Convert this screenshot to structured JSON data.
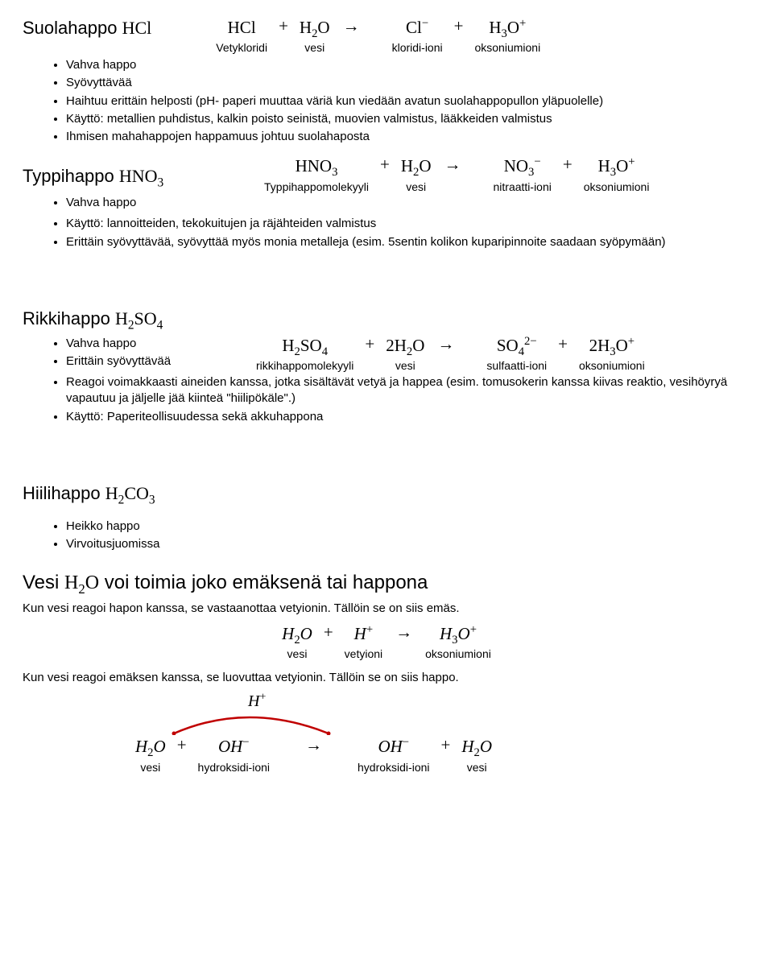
{
  "s1": {
    "title_html": "Suolahappo <span class='chem'>HCl</span>",
    "eq": {
      "terms": [
        {
          "f": "HCl",
          "l": "Vetykloridi"
        },
        {
          "f": "H<sub>2</sub>O",
          "l": "vesi"
        },
        {
          "f": "Cl<sup>−</sup>",
          "l": "kloridi-ioni"
        },
        {
          "f": "H<sub>3</sub>O<sup>+</sup>",
          "l": "oksoniumioni"
        }
      ],
      "ops": [
        "+",
        "→",
        "+"
      ]
    },
    "bullets": [
      "Vahva happo",
      "Syövyttävää",
      "Haihtuu erittäin helposti (pH- paperi muuttaa väriä kun viedään avatun suolahappopullon yläpuolelle)",
      "Käyttö: metallien puhdistus, kalkin poisto seinistä, muovien valmistus, lääkkeiden valmistus",
      "Ihmisen mahahappojen happamuus johtuu suolahaposta"
    ]
  },
  "s2": {
    "title_html": "Typpihappo <span class='chem'>HNO<sub>3</sub></span>",
    "eq": {
      "terms": [
        {
          "f": "HNO<sub>3</sub>",
          "l": "Typpihappomolekyyli"
        },
        {
          "f": "H<sub>2</sub>O",
          "l": "vesi"
        },
        {
          "f": "NO<sub>3</sub><sup>−</sup>",
          "l": "nitraatti-ioni"
        },
        {
          "f": "H<sub>3</sub>O<sup>+</sup>",
          "l": "oksoniumioni"
        }
      ],
      "ops": [
        "+",
        "→",
        "+"
      ]
    },
    "bullets_left": [
      "Vahva happo"
    ],
    "bullets_after": [
      "Käyttö: lannoitteiden, tekokuitujen ja räjähteiden valmistus",
      "Erittäin syövyttävää, syövyttää myös monia metalleja (esim. 5sentin kolikon kuparipinnoite saadaan syöpymään)"
    ]
  },
  "s3": {
    "title_html": "Rikkihappo <span class='chem'>H<sub>2</sub>SO<sub>4</sub></span>",
    "eq": {
      "terms": [
        {
          "f": "H<sub>2</sub>SO<sub>4</sub>",
          "l": "rikkihappomolekyyli"
        },
        {
          "f": "2H<sub>2</sub>O",
          "l": "vesi"
        },
        {
          "f": "SO<sub>4</sub><sup>2−</sup>",
          "l": "sulfaatti-ioni"
        },
        {
          "f": "2H<sub>3</sub>O<sup>+</sup>",
          "l": "oksoniumioni"
        }
      ],
      "ops": [
        "+",
        "→",
        "+"
      ]
    },
    "bullets_left": [
      "Vahva happo",
      "Erittäin syövyttävää"
    ],
    "bullets_after": [
      "Reagoi voimakkaasti aineiden kanssa, jotka sisältävät vetyä ja happea (esim. tomusokerin kanssa kiivas reaktio, vesihöyryä vapautuu ja jäljelle jää kiinteä \"hiilipökäle\".)",
      "Käyttö: Paperiteollisuudessa sekä akkuhappona"
    ]
  },
  "s4": {
    "title_html": "Hiilihappo <span class='chem'>H<sub>2</sub>CO<sub>3</sub></span>",
    "bullets": [
      "Heikko happo",
      "Virvoitusjuomissa"
    ]
  },
  "s5": {
    "title_html": "Vesi <span class='chem'>H<sub>2</sub>O</span> voi toimia joko emäksenä tai happona",
    "p1": "Kun vesi reagoi hapon kanssa, se vastaanottaa vetyionin. Tällöin se on siis emäs.",
    "eq1": {
      "terms": [
        {
          "f": "<span class='italic'>H</span><sub>2</sub><span class='italic'>O</span>",
          "l": "vesi"
        },
        {
          "f": "<span class='italic'>H</span><sup>+</sup>",
          "l": "vetyioni"
        },
        {
          "f": "<span class='italic'>H</span><sub>3</sub><span class='italic'>O</span><sup>+</sup>",
          "l": "oksoniumioni"
        }
      ],
      "ops": [
        "+",
        "→"
      ]
    },
    "p2": "Kun vesi reagoi emäksen kanssa, se luovuttaa vetyionin. Tällöin se on siis happo.",
    "hplus": "<span class='italic'>H</span><sup>+</sup>",
    "eq2": {
      "terms": [
        {
          "f": "<span class='italic'>H</span><sub>2</sub><span class='italic'>O</span>",
          "l": "vesi"
        },
        {
          "f": "<span class='italic'>OH</span><sup>−</sup>",
          "l": "hydroksidi-ioni"
        },
        {
          "f": "<span class='italic'>OH</span><sup>−</sup>",
          "l": "hydroksidi-ioni"
        },
        {
          "f": "<span class='italic'>H</span><sub>2</sub><span class='italic'>O</span>",
          "l": "vesi"
        }
      ],
      "ops": [
        "+",
        "→",
        "+"
      ]
    },
    "arc_color": "#c00000"
  }
}
